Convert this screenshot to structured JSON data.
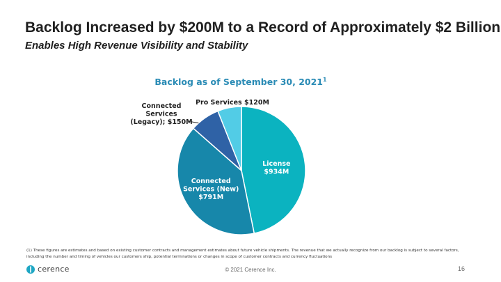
{
  "header": {
    "title": "Backlog Increased by $200M to a Record of Approximately $2 Billion",
    "subtitle": "Enables High Revenue Visibility and Stability"
  },
  "chart_data": {
    "type": "pie",
    "title": "Backlog as of September 30, 2021",
    "title_superscript": "1",
    "slices": [
      {
        "name": "License",
        "value": 934,
        "label_lines": [
          "License",
          "$934M"
        ],
        "color": "#0bb3c0",
        "label_position": "inside"
      },
      {
        "name": "Connected Services (New)",
        "value": 791,
        "label_lines": [
          "Connected",
          "Services (New)",
          "$791M"
        ],
        "color": "#1787aa",
        "label_position": "inside"
      },
      {
        "name": "Connected Services (Legacy)",
        "value": 150,
        "label_lines": [
          "Connected",
          "Services",
          "(Legacy); $150M"
        ],
        "color": "#2f62a6",
        "label_position": "outside-left"
      },
      {
        "name": "Pro Services",
        "value": 120,
        "label_lines": [
          "Pro Services $120M"
        ],
        "color": "#52cce6",
        "label_position": "outside-top"
      }
    ],
    "units": "$M",
    "start": "top",
    "direction": "clockwise"
  },
  "footnote": "(1) These figures are estimates and based on existing customer contracts and management estimates about future vehicle shipments. The revenue that we actually recognize from our backlog is subject to several factors, including the number and timing of vehicles our customers ship, potential terminations or changes in scope of customer contracts and currency fluctuations",
  "footer": {
    "brand": "cerence",
    "copyright": "© 2021 Cerence Inc.",
    "page_number": "16"
  },
  "colors": {
    "accent": "#2a8bb5",
    "logo": "#1fa7c4"
  }
}
